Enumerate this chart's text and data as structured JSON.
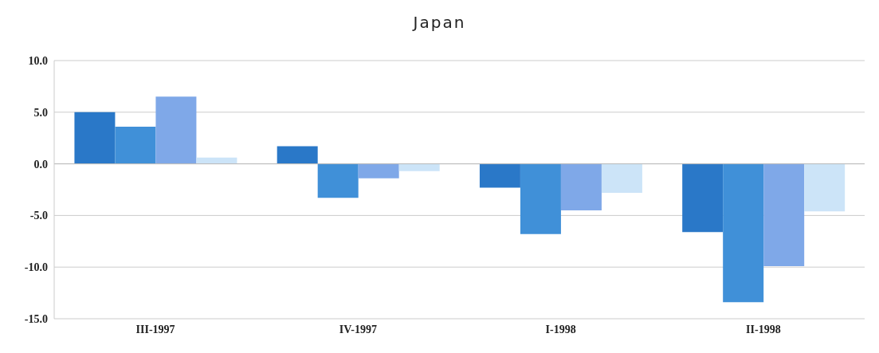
{
  "chart_data": {
    "type": "bar",
    "title": "Japan",
    "categories": [
      "III-1997",
      "IV-1997",
      "I-1998",
      "II-1998"
    ],
    "series": [
      {
        "color": "#2a78c8",
        "values": [
          5.0,
          1.7,
          -2.3,
          -6.6
        ]
      },
      {
        "color": "#4090d8",
        "values": [
          3.6,
          -3.3,
          -6.8,
          -13.4
        ]
      },
      {
        "color": "#7fa8e8",
        "values": [
          6.5,
          -1.4,
          -4.5,
          -9.9
        ]
      },
      {
        "color": "#cce4f8",
        "values": [
          0.6,
          -0.7,
          -2.8,
          -4.6
        ]
      }
    ],
    "ylim": [
      -15,
      10
    ],
    "yticks": [
      {
        "value": -15,
        "label": "-15.0"
      },
      {
        "value": -10,
        "label": "-10.0"
      },
      {
        "value": -5,
        "label": "-5.0"
      },
      {
        "value": 0,
        "label": "0.0"
      },
      {
        "value": 5,
        "label": "5.0"
      },
      {
        "value": 10,
        "label": "10.0"
      }
    ],
    "grid": "y"
  }
}
